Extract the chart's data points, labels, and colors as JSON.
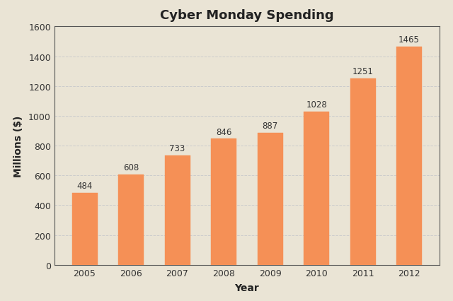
{
  "title": "Cyber Monday Spending",
  "xlabel": "Year",
  "ylabel": "Millions ($)",
  "categories": [
    "2005",
    "2006",
    "2007",
    "2008",
    "2009",
    "2010",
    "2011",
    "2012"
  ],
  "values": [
    484,
    608,
    733,
    846,
    887,
    1028,
    1251,
    1465
  ],
  "bar_color": "#F59056",
  "bar_edge_color": "#F59056",
  "ylim": [
    0,
    1600
  ],
  "yticks": [
    0,
    200,
    400,
    600,
    800,
    1000,
    1200,
    1400,
    1600
  ],
  "background_color": "#EAE4D5",
  "plot_background_color": "#EAE4D5",
  "grid_color": "#CCCCCC",
  "spine_color": "#555555",
  "title_fontsize": 13,
  "label_fontsize": 10,
  "tick_fontsize": 9,
  "annotation_fontsize": 8.5,
  "bar_width": 0.55
}
